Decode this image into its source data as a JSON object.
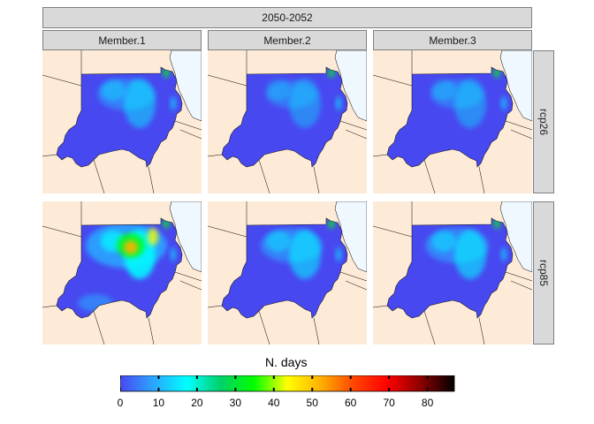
{
  "title": "2050-2052",
  "columns": [
    "Member.1",
    "Member.2",
    "Member.3"
  ],
  "rows": [
    "rcp26",
    "rcp85"
  ],
  "legend": {
    "title": "N. days",
    "min": 0,
    "max": 87,
    "ticks": [
      "0",
      "10",
      "20",
      "30",
      "40",
      "50",
      "60",
      "70",
      "80"
    ],
    "tick_values": [
      0,
      10,
      20,
      30,
      40,
      50,
      60,
      70,
      80
    ]
  },
  "colors": {
    "background_land": "#fdebd8",
    "sea": "#f0f8ff",
    "palette": [
      "#4848f0",
      "#2aa6ff",
      "#00ffff",
      "#00d06a",
      "#00ff00",
      "#ffff00",
      "#ffb000",
      "#ff4500",
      "#ff0000",
      "#8b0000",
      "#000000"
    ]
  },
  "panels": [
    {
      "row": "rcp26",
      "column": "Member.1",
      "intensity": 0.22
    },
    {
      "row": "rcp26",
      "column": "Member.2",
      "intensity": 0.12
    },
    {
      "row": "rcp26",
      "column": "Member.3",
      "intensity": 0.14
    },
    {
      "row": "rcp85",
      "column": "Member.1",
      "intensity": 0.55
    },
    {
      "row": "rcp85",
      "column": "Member.2",
      "intensity": 0.28
    },
    {
      "row": "rcp85",
      "column": "Member.3",
      "intensity": 0.3
    }
  ]
}
